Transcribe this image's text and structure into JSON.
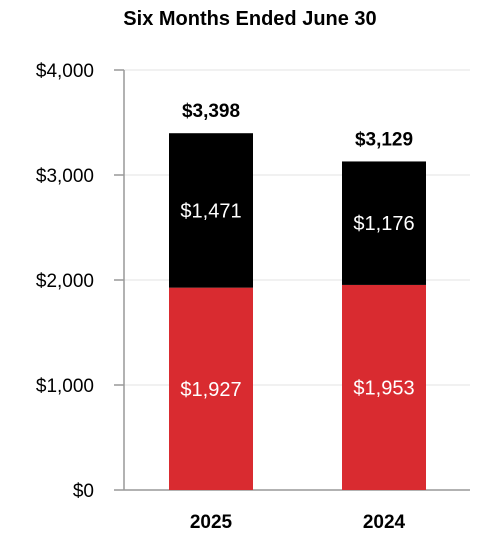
{
  "chart_data": {
    "type": "bar",
    "stacked": true,
    "title": "Six Months Ended June 30",
    "xlabel": "",
    "ylabel": "",
    "categories": [
      "2025",
      "2024"
    ],
    "series": [
      {
        "values": [
          1927,
          1953
        ],
        "labels": [
          "$1,927",
          "$1,953"
        ],
        "color": "#d92b30"
      },
      {
        "values": [
          1471,
          1176
        ],
        "labels": [
          "$1,471",
          "$1,176"
        ],
        "color": "#000000"
      }
    ],
    "totals": [
      3398,
      3129
    ],
    "total_labels": [
      "$3,398",
      "$3,129"
    ],
    "ylim": [
      0,
      4000
    ],
    "yticks": [
      0,
      1000,
      2000,
      3000,
      4000
    ],
    "ytick_labels": [
      "$0",
      "$1,000",
      "$2,000",
      "$3,000",
      "$4,000"
    ],
    "grid": true,
    "legend": "none"
  }
}
